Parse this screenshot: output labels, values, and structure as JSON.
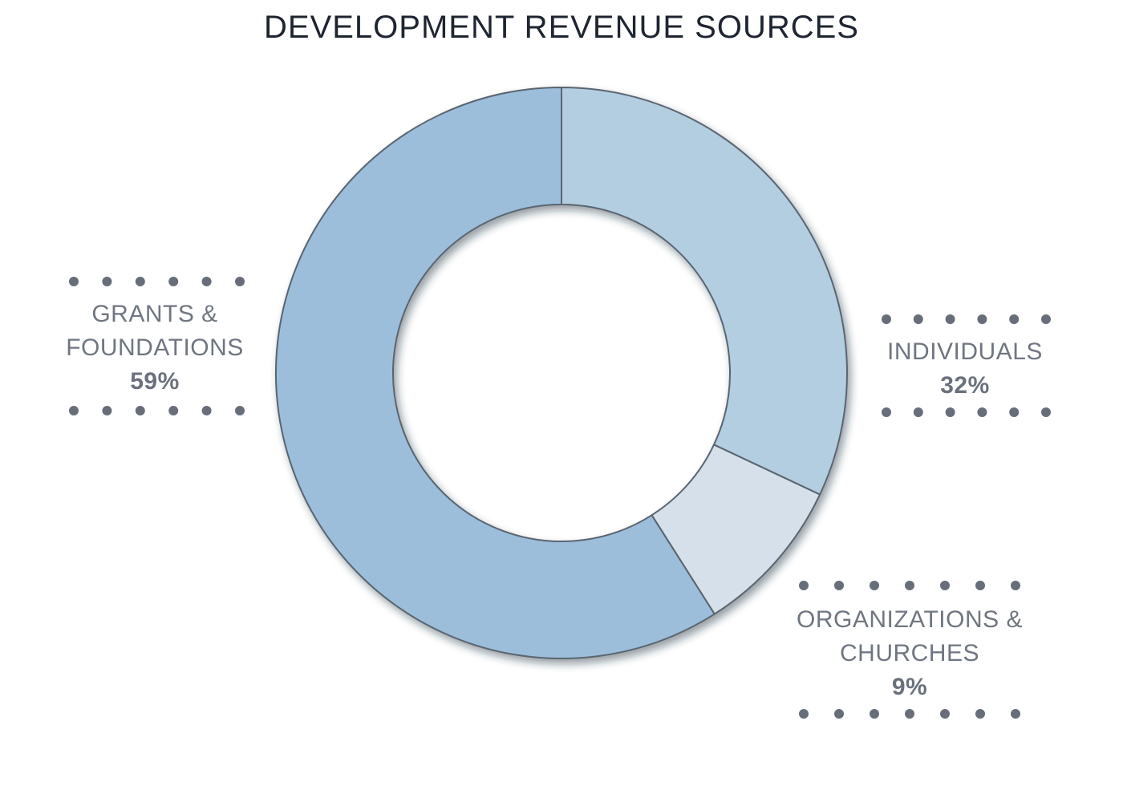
{
  "chart_data": {
    "type": "donut",
    "title": "DEVELOPMENT REVENUE SOURCES",
    "categories": [
      "INDIVIDUALS",
      "ORGANIZATIONS & CHURCHES",
      "GRANTS & FOUNDATIONS"
    ],
    "values": [
      32,
      9,
      59
    ],
    "value_labels": [
      "32%",
      "9%",
      "59%"
    ],
    "colors": [
      "#b3cde1",
      "#d6e0eb",
      "#9cbedb"
    ]
  }
}
